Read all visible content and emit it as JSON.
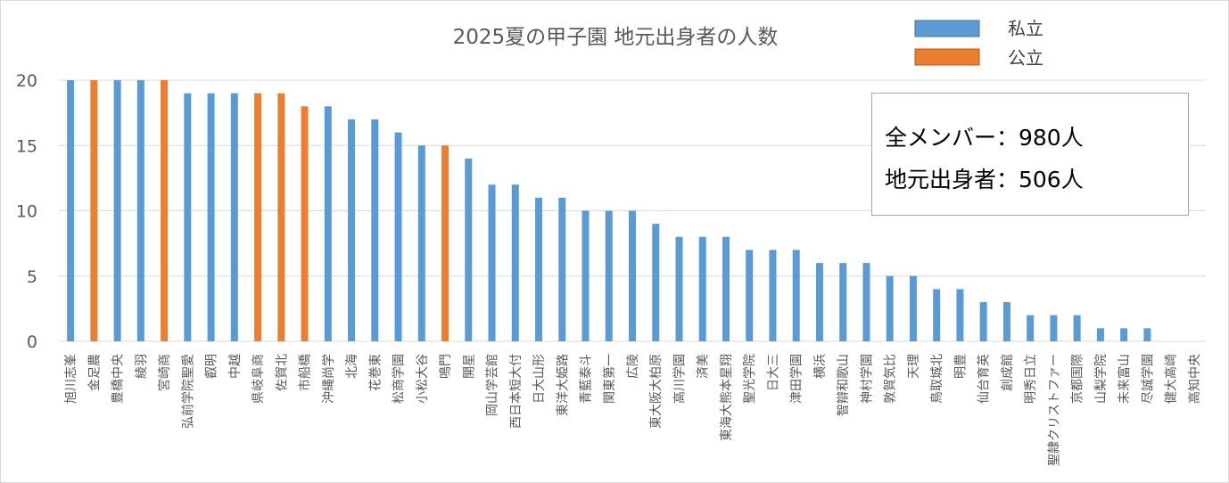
{
  "chart_data": {
    "type": "bar",
    "title": "2025夏の甲子園  地元出身者の人数",
    "xlabel": "",
    "ylabel": "",
    "ylim": [
      0,
      20
    ],
    "yticks": [
      0,
      5,
      10,
      15,
      20
    ],
    "grid": true,
    "legend_position": "top-right",
    "legend": [
      {
        "name": "私立",
        "color": "#5b9bd5"
      },
      {
        "name": "公立",
        "color": "#ed7d31"
      }
    ],
    "categories": [
      "旭川志峯",
      "金足農",
      "豊橋中央",
      "綾羽",
      "宮崎商",
      "弘前学院聖愛",
      "叡明",
      "中越",
      "県岐阜商",
      "佐賀北",
      "市船橋",
      "沖縄尚学",
      "北海",
      "花巻東",
      "松商学園",
      "小松大谷",
      "鳴門",
      "開星",
      "岡山学芸館",
      "西日本短大付",
      "日大山形",
      "東洋大姫路",
      "青藍泰斗",
      "関東第一",
      "広陵",
      "東大阪大柏原",
      "高川学園",
      "済美",
      "東海大熊本星翔",
      "聖光学院",
      "日大三",
      "津田学園",
      "横浜",
      "智辯和歌山",
      "神村学園",
      "敦賀気比",
      "天理",
      "鳥取城北",
      "明豊",
      "仙台育英",
      "創成館",
      "明秀日立",
      "聖隷クリストファー",
      "京都国際",
      "山梨学院",
      "未来富山",
      "尽誠学園",
      "健大高崎",
      "高知中央"
    ],
    "values": [
      20,
      20,
      20,
      20,
      20,
      19,
      19,
      19,
      19,
      19,
      18,
      18,
      17,
      17,
      16,
      15,
      15,
      14,
      12,
      12,
      11,
      11,
      10,
      10,
      10,
      9,
      8,
      8,
      8,
      7,
      7,
      7,
      6,
      6,
      6,
      5,
      5,
      4,
      4,
      3,
      3,
      2,
      2,
      2,
      1,
      1,
      1,
      0,
      0
    ],
    "type_of_school": [
      "私立",
      "公立",
      "私立",
      "私立",
      "公立",
      "私立",
      "私立",
      "私立",
      "公立",
      "公立",
      "公立",
      "私立",
      "私立",
      "私立",
      "私立",
      "私立",
      "公立",
      "私立",
      "私立",
      "私立",
      "私立",
      "私立",
      "私立",
      "私立",
      "私立",
      "私立",
      "私立",
      "私立",
      "私立",
      "私立",
      "私立",
      "私立",
      "私立",
      "私立",
      "私立",
      "私立",
      "私立",
      "私立",
      "私立",
      "私立",
      "私立",
      "私立",
      "私立",
      "私立",
      "私立",
      "私立",
      "私立",
      "私立",
      "私立"
    ]
  },
  "annotation": {
    "members": "全メンバー：980人",
    "local": "地元出身者：506人"
  }
}
